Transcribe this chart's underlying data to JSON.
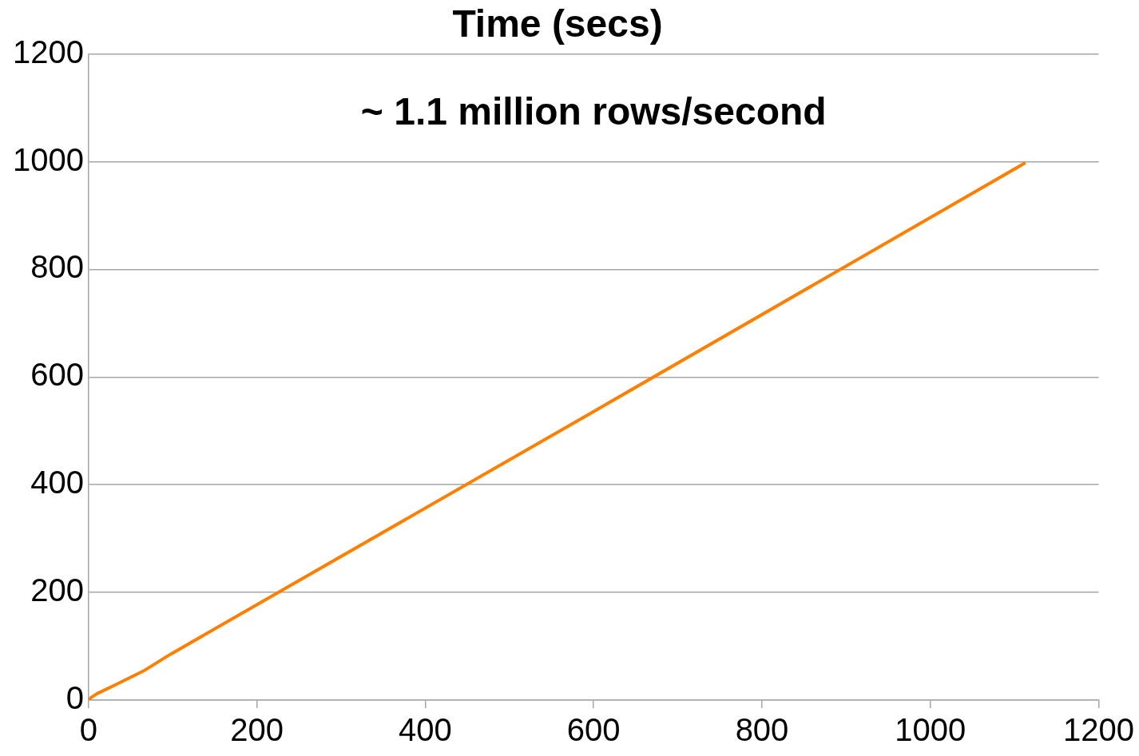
{
  "chart_data": {
    "type": "line",
    "title": "Time (secs)",
    "annotations": [
      "~ 1.1 million rows/second"
    ],
    "series": [
      {
        "color": "#ff7f00",
        "x": [
          0,
          3,
          10,
          30,
          65,
          97,
          600,
          1113
        ],
        "values": [
          0,
          5,
          12,
          27,
          54,
          85,
          536,
          998
        ]
      }
    ],
    "xlim": [
      0,
      1200
    ],
    "xticks": [
      0,
      200,
      400,
      600,
      800,
      1000,
      1200
    ],
    "ylim": [
      0,
      1200
    ],
    "yticks": [
      0,
      200,
      400,
      600,
      800,
      1000,
      1200
    ],
    "grid": "y",
    "legend": false,
    "marker": "none",
    "line_style": "solid"
  }
}
